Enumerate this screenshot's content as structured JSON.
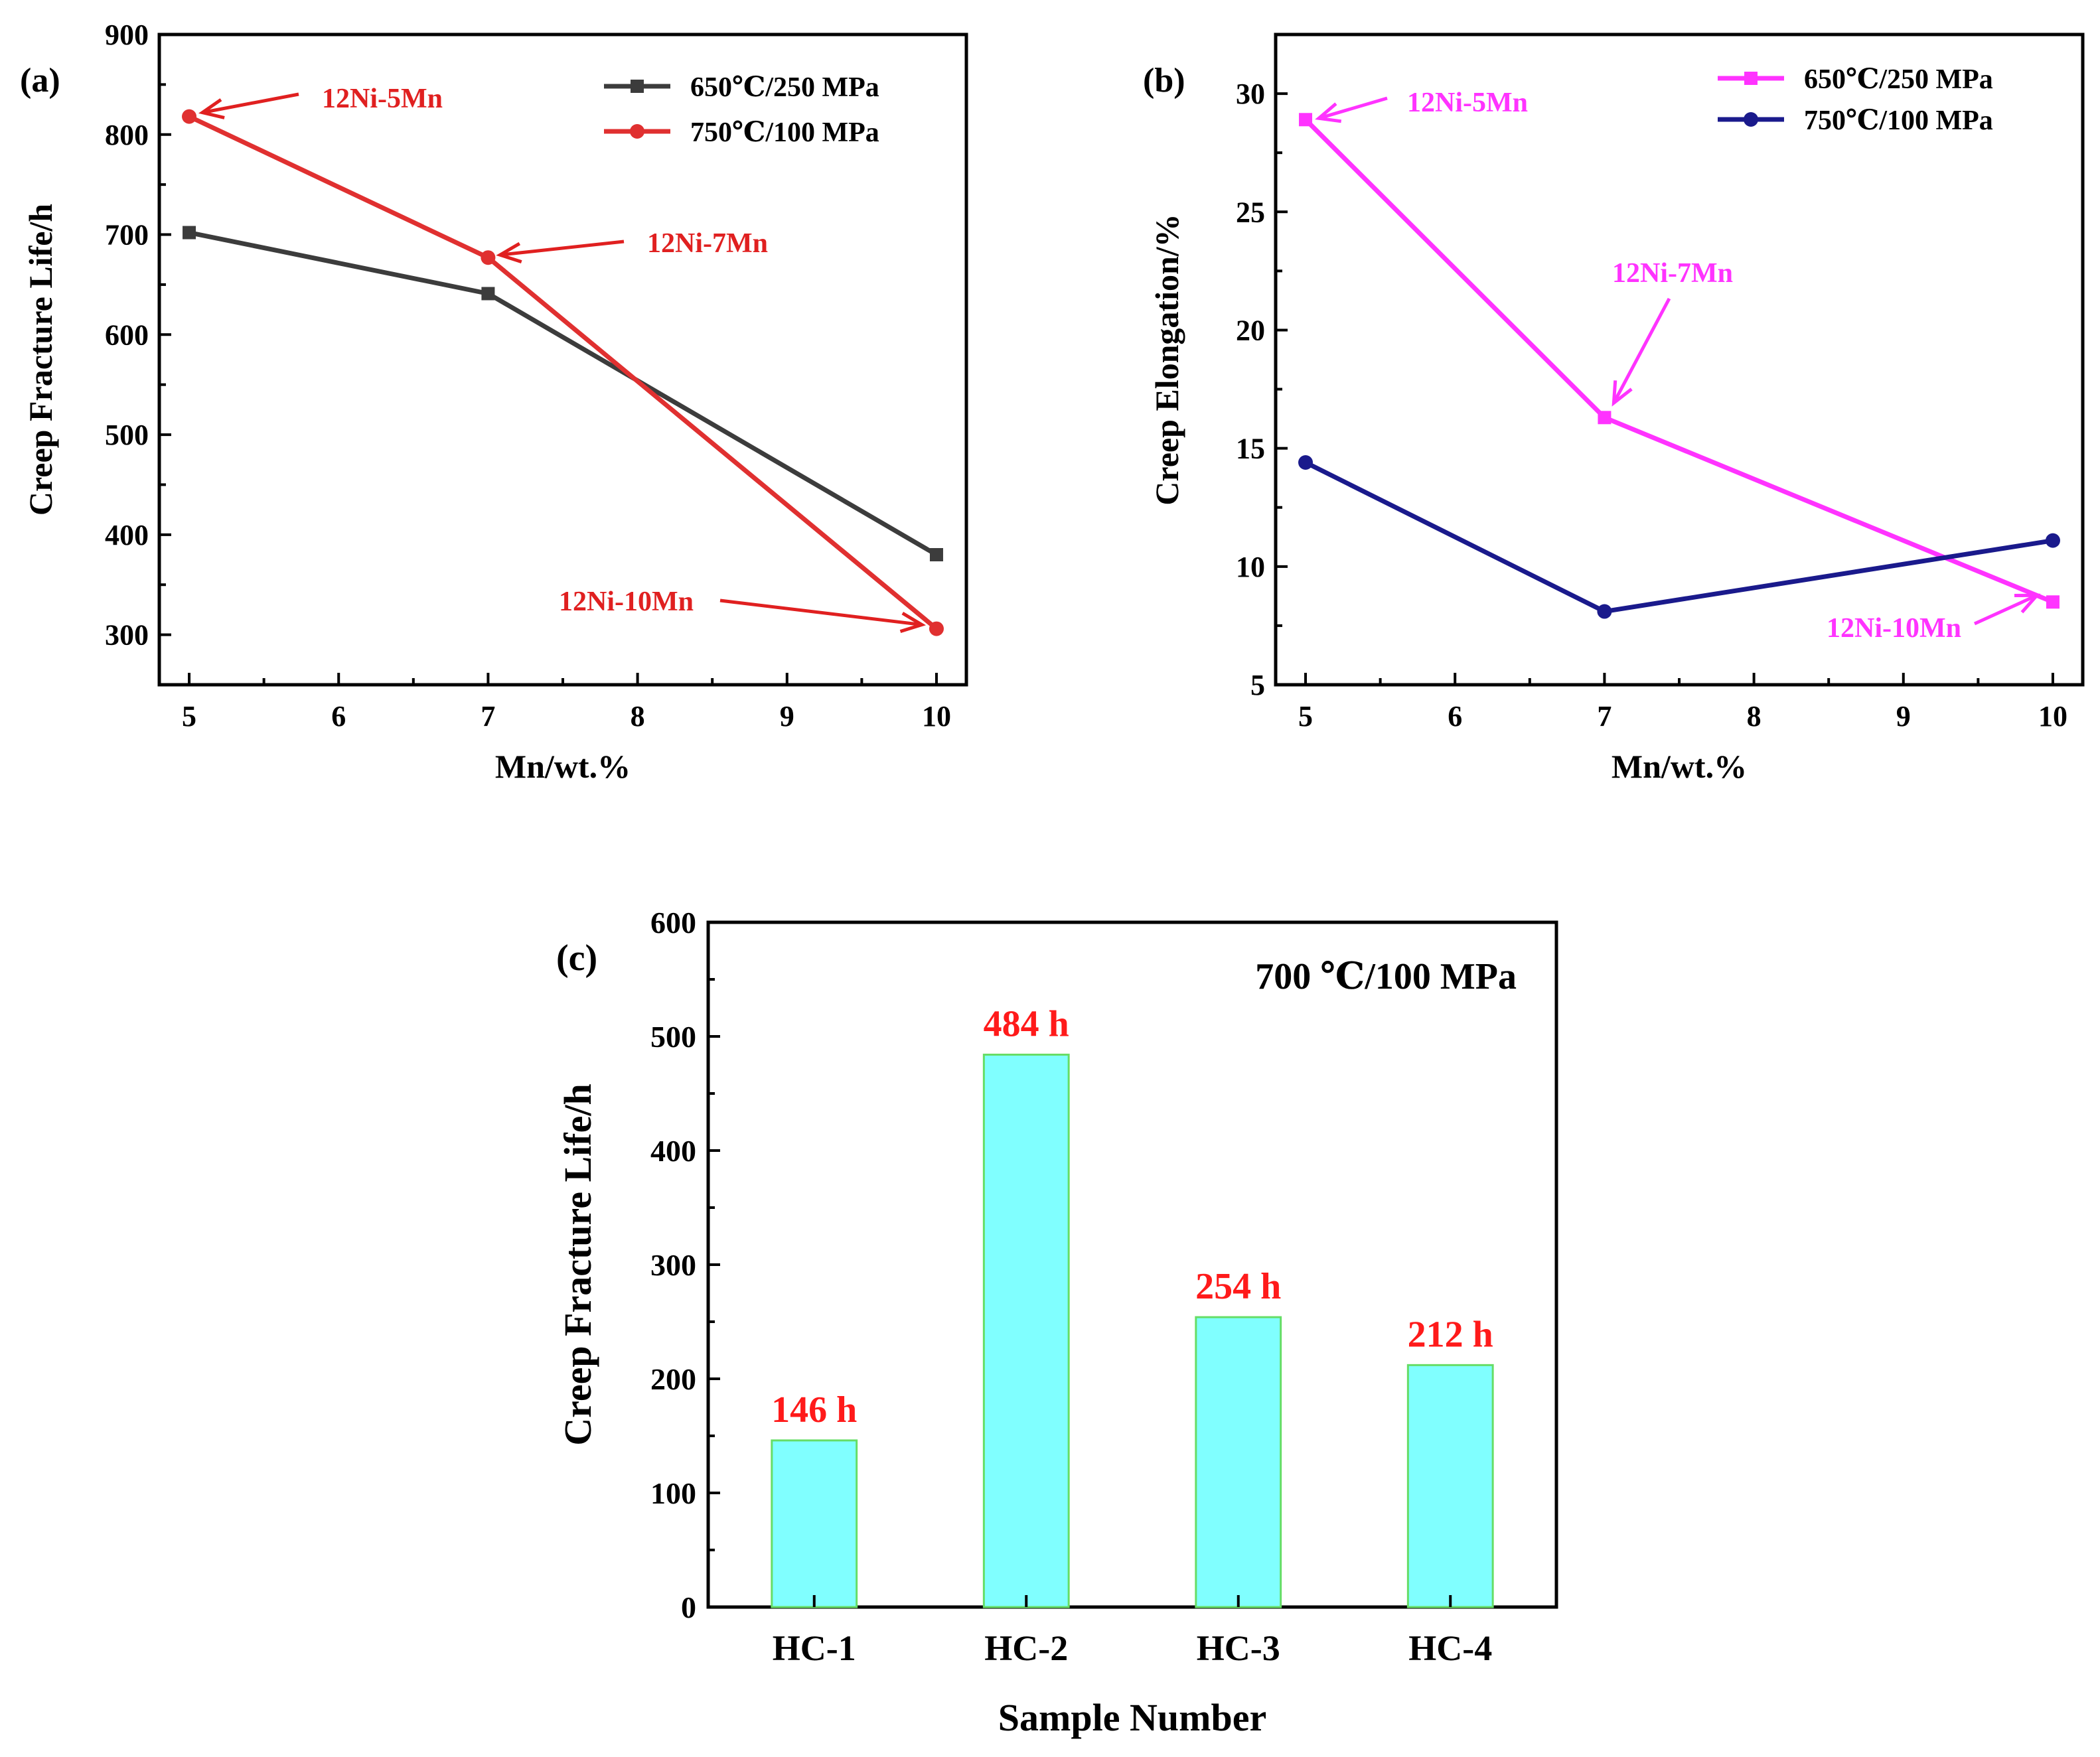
{
  "chart_data": [
    {
      "id": "a",
      "type": "line",
      "panel_label": "(a)",
      "xlabel": "Mn/wt.%",
      "ylabel": "Creep Fracture Life/h",
      "xlim": [
        4.8,
        10.2
      ],
      "ylim": [
        250,
        900
      ],
      "xticks": [
        "5",
        "6",
        "7",
        "8",
        "9",
        "10"
      ],
      "xtick_values": [
        5,
        6,
        7,
        8,
        9,
        10
      ],
      "yticks": [
        "300",
        "400",
        "500",
        "600",
        "700",
        "800",
        "900"
      ],
      "ytick_values": [
        300,
        400,
        500,
        600,
        700,
        800,
        900
      ],
      "legend_position": "top-right",
      "series": [
        {
          "name": "650℃/250 MPa",
          "color": "#3c3c3c",
          "marker": "square",
          "x": [
            5,
            7,
            10
          ],
          "values": [
            702,
            641,
            380
          ]
        },
        {
          "name": "750℃/100 MPa",
          "color": "#e03030",
          "marker": "circle",
          "x": [
            5,
            7,
            10
          ],
          "values": [
            818,
            677,
            306
          ]
        }
      ],
      "annotations": [
        {
          "text": "12Ni-5Mn",
          "color": "#e02020",
          "target_x": 5,
          "target_y": 818
        },
        {
          "text": "12Ni-7Mn",
          "color": "#e02020",
          "target_x": 7,
          "target_y": 677
        },
        {
          "text": "12Ni-10Mn",
          "color": "#e02020",
          "target_x": 10,
          "target_y": 306
        }
      ]
    },
    {
      "id": "b",
      "type": "line",
      "panel_label": "(b)",
      "xlabel": "Mn/wt.%",
      "ylabel": "Creep Elongation/%",
      "xlim": [
        4.8,
        10.2
      ],
      "ylim": [
        5,
        32.5
      ],
      "xticks": [
        "5",
        "6",
        "7",
        "8",
        "9",
        "10"
      ],
      "xtick_values": [
        5,
        6,
        7,
        8,
        9,
        10
      ],
      "yticks": [
        "5",
        "10",
        "15",
        "20",
        "25",
        "30"
      ],
      "ytick_values": [
        5,
        10,
        15,
        20,
        25,
        30
      ],
      "legend_position": "top-right",
      "series": [
        {
          "name": "650℃/250 MPa",
          "color": "#ff33ff",
          "marker": "square",
          "x": [
            5,
            7,
            10
          ],
          "values": [
            28.9,
            16.3,
            8.5
          ]
        },
        {
          "name": "750℃/100 MPa",
          "color": "#1a1a8c",
          "marker": "circle",
          "x": [
            5,
            7,
            10
          ],
          "values": [
            14.4,
            8.1,
            11.1
          ]
        }
      ],
      "annotations": [
        {
          "text": "12Ni-5Mn",
          "color": "#ff33ff",
          "target_x": 5,
          "target_y": 28.9
        },
        {
          "text": "12Ni-7Mn",
          "color": "#ff33ff",
          "target_x": 7,
          "target_y": 16.3
        },
        {
          "text": "12Ni-10Mn",
          "color": "#ff33ff",
          "target_x": 10,
          "target_y": 8.5
        }
      ]
    },
    {
      "id": "c",
      "type": "bar",
      "panel_label": "(c)",
      "title": "700 ℃/100 MPa",
      "xlabel": "Sample Number",
      "ylabel": "Creep Fracture Life/h",
      "ylim": [
        0,
        600
      ],
      "yticks": [
        "0",
        "100",
        "200",
        "300",
        "400",
        "500",
        "600"
      ],
      "ytick_values": [
        0,
        100,
        200,
        300,
        400,
        500,
        600
      ],
      "categories": [
        "HC-1",
        "HC-2",
        "HC-3",
        "HC-4"
      ],
      "values": [
        146,
        484,
        254,
        212
      ],
      "data_labels": [
        "146 h",
        "484 h",
        "254 h",
        "212 h"
      ],
      "bar_color": "#80ffff",
      "bar_edge_color": "#66dd66",
      "label_color": "#ff1a1a"
    }
  ]
}
